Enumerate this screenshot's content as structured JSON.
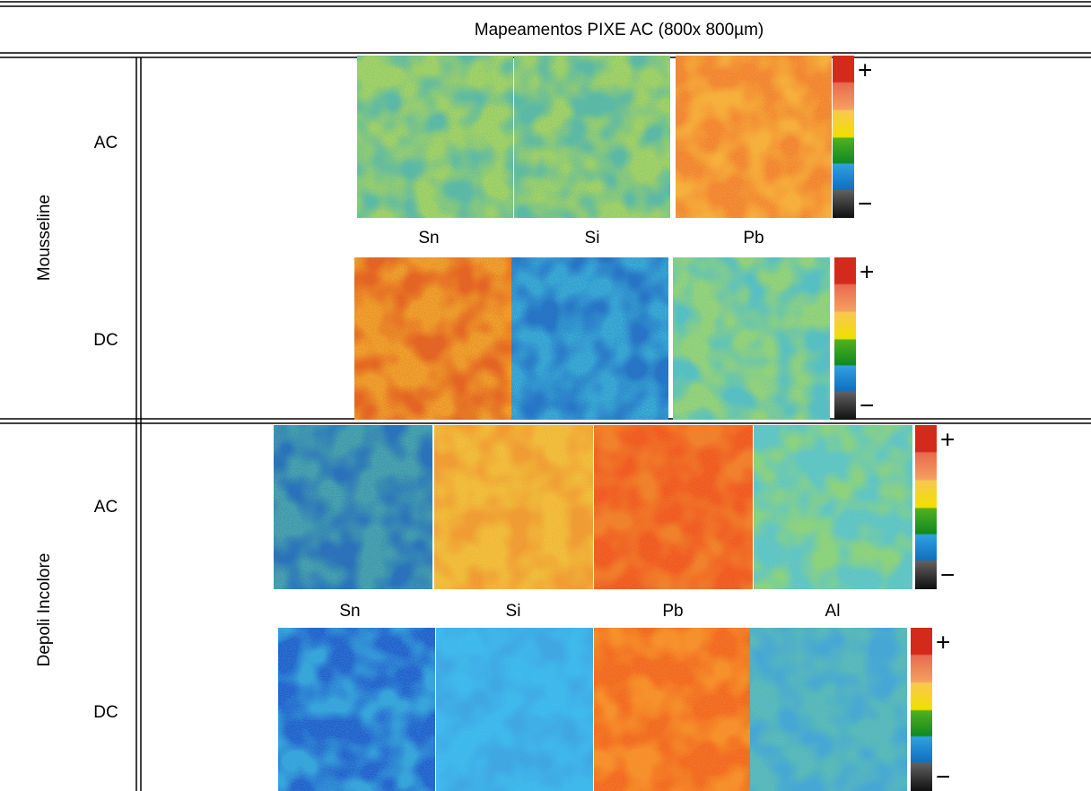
{
  "header": {
    "title": "Mapeamentos PIXE AC (800x 800µm)"
  },
  "sections": [
    {
      "name": "Mousseline",
      "elements": [
        "Sn",
        "Si",
        "Pb"
      ],
      "rows": [
        {
          "label": "AC",
          "colorbar": {
            "max": "+",
            "min": "−"
          }
        },
        {
          "label": "DC",
          "colorbar": {
            "max": "+",
            "min": "−"
          }
        }
      ]
    },
    {
      "name": "Depoli Incolore",
      "elements": [
        "Sn",
        "Si",
        "Pb",
        "Al"
      ],
      "rows": [
        {
          "label": "AC",
          "colorbar": {
            "max": "+",
            "min": "−"
          }
        },
        {
          "label": "DC",
          "colorbar": {
            "max": "+",
            "min": "−"
          }
        }
      ]
    }
  ]
}
